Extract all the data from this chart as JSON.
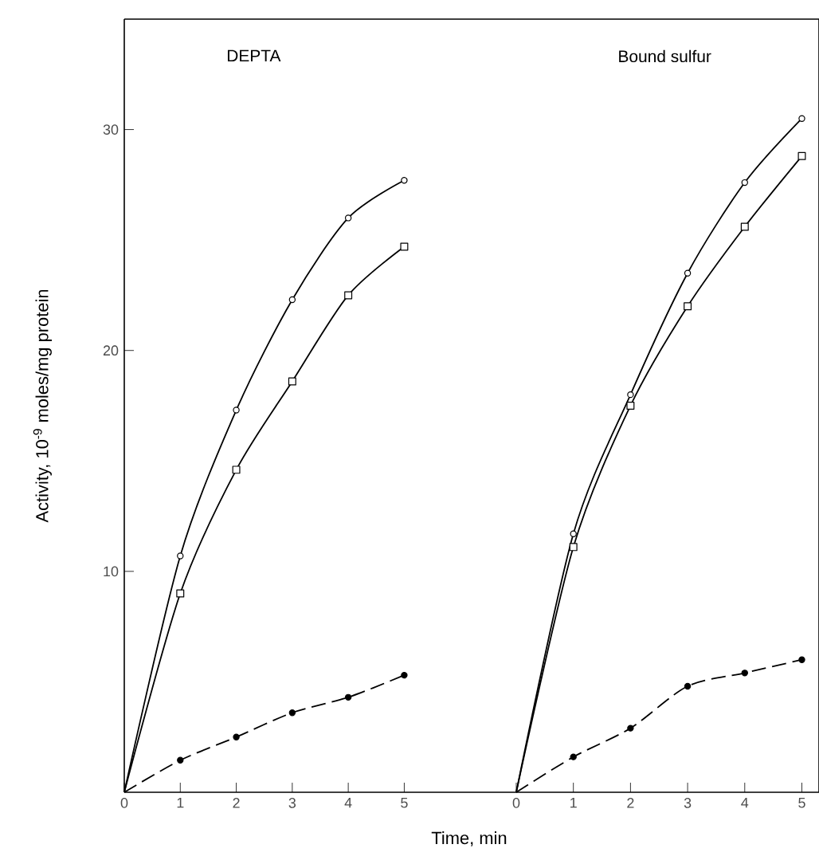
{
  "chart_data": [
    {
      "type": "line",
      "title": "DEPTA",
      "xlabel": "Time, min",
      "ylabel": "Activity, 10$^{-9}$ moles/mg protein",
      "xlim": [
        0,
        7
      ],
      "ylim": [
        0,
        35
      ],
      "xticks": [
        0,
        1,
        2,
        3,
        4,
        5
      ],
      "yticks": [
        10,
        20,
        30
      ],
      "grid": false,
      "x": [
        0,
        1,
        2,
        3,
        4,
        5
      ],
      "series": [
        {
          "color": "#000000",
          "marker": "circle",
          "line_style": "solid",
          "values": [
            0,
            10.7,
            17.3,
            22.3,
            26.0,
            27.7
          ]
        },
        {
          "color": "#000000",
          "marker": "square",
          "line_style": "solid",
          "values": [
            0,
            9.0,
            14.6,
            18.6,
            22.5,
            24.7
          ]
        },
        {
          "color": "#000000",
          "marker": "circle",
          "line_style": "dashed",
          "values": [
            0,
            1.45,
            2.5,
            3.6,
            4.3,
            5.3
          ]
        }
      ]
    },
    {
      "type": "line",
      "title": "Bound sulfur",
      "xlim": [
        0,
        5.3
      ],
      "ylim": [
        0,
        35
      ],
      "xticks": [
        0,
        1,
        2,
        3,
        4,
        5
      ],
      "tick_labels": "x",
      "grid": false,
      "x": [
        0,
        1,
        2,
        3,
        4,
        5
      ],
      "series": [
        {
          "color": "#000000",
          "marker": "circle",
          "line_style": "solid",
          "values": [
            0,
            11.7,
            18.0,
            23.5,
            27.6,
            30.5
          ]
        },
        {
          "color": "#000000",
          "marker": "square",
          "line_style": "solid",
          "values": [
            0,
            11.1,
            17.5,
            22.0,
            25.6,
            28.8
          ]
        },
        {
          "color": "#000000",
          "marker": "circle",
          "line_style": "dashed",
          "values": [
            0,
            1.6,
            2.9,
            4.8,
            5.4,
            6.0
          ]
        }
      ]
    }
  ]
}
